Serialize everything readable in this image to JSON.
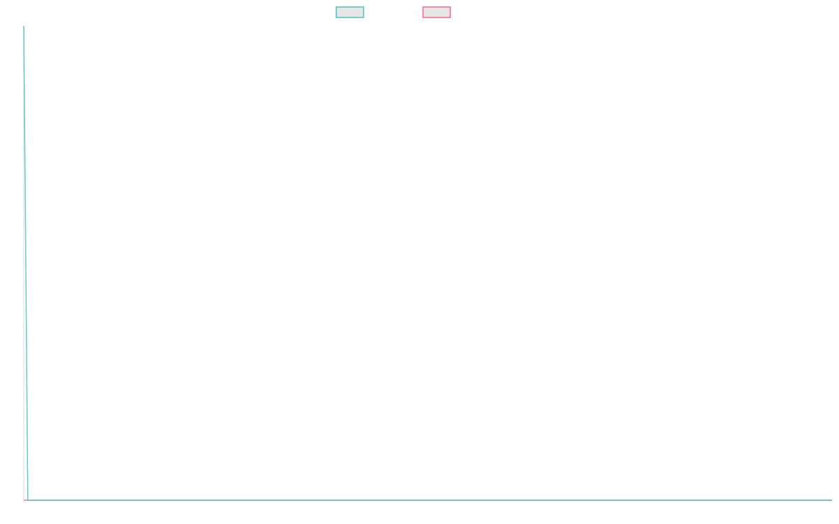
{
  "chart_data": {
    "type": "line",
    "title": "",
    "xlabel": "",
    "ylabel": "",
    "ylim": [
      0,
      100
    ],
    "grid": false,
    "legend_placement": "top",
    "series": [
      {
        "color": "#4bc0c0",
        "values": [
          100,
          0,
          0,
          0,
          0,
          0,
          0,
          0,
          0,
          0,
          0,
          0,
          0,
          0,
          0,
          0,
          0,
          0,
          0,
          0,
          0,
          0,
          0,
          0,
          0,
          0,
          0,
          0,
          0,
          0,
          0,
          0,
          0,
          0,
          0,
          0,
          0,
          0,
          0,
          0,
          0,
          0,
          0,
          0,
          0,
          0,
          0,
          0,
          0,
          0,
          0,
          0,
          0,
          0,
          0,
          0,
          0,
          0,
          0,
          0,
          0,
          0,
          0,
          0,
          0,
          0,
          0,
          0,
          0,
          0,
          0,
          0,
          0,
          0,
          0,
          0,
          0,
          0,
          0,
          0,
          0,
          0,
          0,
          0,
          0,
          0,
          0,
          0,
          0,
          0,
          0,
          0,
          0,
          0,
          0,
          0,
          0,
          0,
          0,
          0,
          0,
          0,
          0,
          0,
          0,
          0,
          0,
          0,
          0,
          0,
          0,
          0,
          0,
          0,
          0,
          0,
          0,
          0,
          0,
          0,
          0,
          0,
          0,
          0,
          0,
          0,
          0,
          0,
          0,
          0,
          0,
          0,
          0,
          0,
          0,
          0,
          0,
          0,
          0,
          0,
          0,
          0,
          0,
          0,
          0,
          0,
          0,
          0,
          0,
          0,
          0,
          0,
          0,
          0,
          0,
          0,
          0,
          0,
          0,
          0,
          0,
          0,
          0,
          0,
          0,
          0,
          0,
          0,
          0,
          0,
          0,
          0,
          0,
          0,
          0,
          0,
          0,
          0,
          0,
          0,
          0,
          0,
          0,
          0,
          0,
          0,
          0,
          0,
          0,
          0,
          0,
          0,
          0,
          0,
          0,
          0,
          0,
          0,
          0,
          0
        ]
      },
      {
        "color": "#ff6384",
        "values": [
          0,
          0,
          0,
          0,
          0,
          0,
          0,
          0,
          0,
          0,
          0,
          0,
          0,
          0,
          0,
          0,
          0,
          0,
          0,
          0,
          0,
          0,
          0,
          0,
          0,
          0,
          0,
          0,
          0,
          0,
          0,
          0,
          0,
          0,
          0,
          0,
          0,
          0,
          0,
          0,
          0,
          0,
          0,
          0,
          0,
          0,
          0,
          0,
          0,
          0,
          0,
          0,
          0,
          0,
          0,
          0,
          0,
          0,
          0,
          0,
          0,
          0,
          0,
          0,
          0,
          0,
          0,
          0,
          0,
          0,
          0,
          0,
          0,
          0,
          0,
          0,
          0,
          0,
          0,
          0,
          0,
          0,
          0,
          0,
          0,
          0,
          0,
          0,
          0,
          0,
          0,
          0,
          0,
          0,
          0,
          0,
          0,
          0,
          0,
          0,
          0,
          0,
          0,
          0,
          0,
          0,
          0,
          0,
          0,
          0,
          0,
          0,
          0,
          0,
          0,
          0,
          0,
          0,
          0,
          0,
          0,
          0,
          0,
          0,
          0,
          0,
          0,
          0,
          0,
          0,
          0,
          0,
          0,
          0,
          0,
          0,
          0,
          0,
          0,
          0,
          0,
          0,
          0,
          0,
          0,
          0,
          0,
          0,
          0,
          0,
          0,
          0,
          0,
          0,
          0,
          0,
          0,
          0,
          0,
          0,
          0,
          0,
          0,
          0,
          0,
          0,
          0,
          0,
          0,
          0,
          0,
          0,
          0,
          0,
          0,
          0,
          0,
          0,
          0,
          0,
          0,
          0,
          0,
          0,
          0,
          0,
          0,
          0,
          0,
          0,
          0,
          0,
          0,
          0,
          0,
          0,
          0,
          0,
          0,
          0
        ]
      }
    ]
  }
}
